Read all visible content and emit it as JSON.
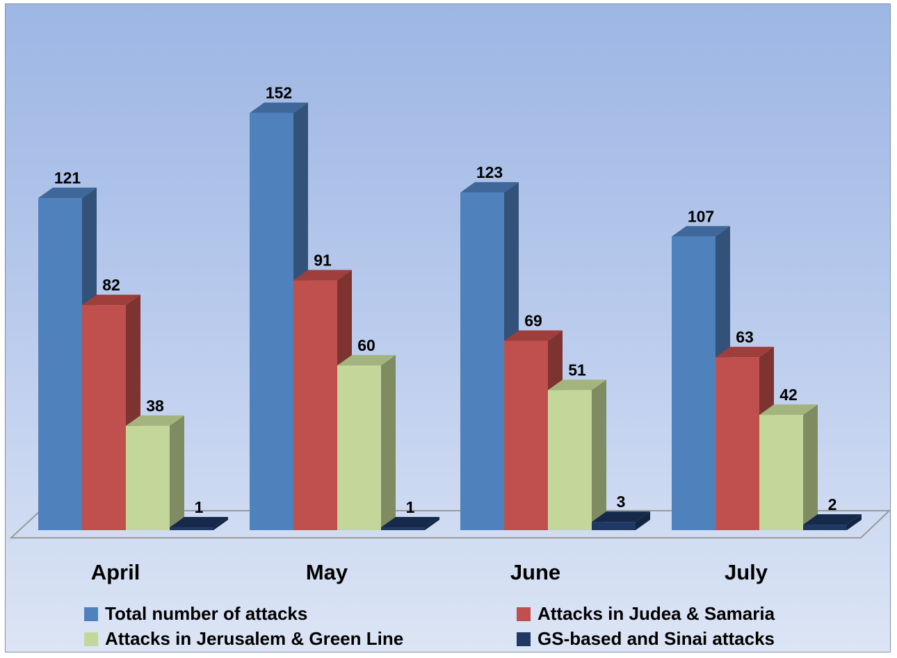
{
  "chart_data": {
    "type": "bar",
    "style": "3d-clustered-column",
    "categories": [
      "April",
      "May",
      "June",
      "July"
    ],
    "series": [
      {
        "name": "Total number of attacks",
        "values": [
          121,
          152,
          123,
          107
        ],
        "color": "#4f81bd",
        "side_color": "#33527a",
        "top_color": "#3f679a"
      },
      {
        "name": "Attacks in Judea & Samaria",
        "values": [
          82,
          91,
          69,
          63
        ],
        "color": "#c0504d",
        "side_color": "#7d3330",
        "top_color": "#9e3f3c"
      },
      {
        "name": "Attacks in Jerusalem & Green Line",
        "values": [
          38,
          60,
          51,
          42
        ],
        "color": "#c4d79b",
        "side_color": "#7f8c62",
        "top_color": "#a3b47e"
      },
      {
        "name": "GS-based and Sinai attacks",
        "values": [
          1,
          1,
          3,
          2
        ],
        "color": "#1f3864",
        "side_color": "#142543",
        "top_color": "#17294a"
      }
    ],
    "data_labels": true,
    "legend_position": "bottom",
    "ylim": [
      0,
      160
    ],
    "grid": false,
    "title": "",
    "xlabel": "",
    "ylabel": ""
  }
}
